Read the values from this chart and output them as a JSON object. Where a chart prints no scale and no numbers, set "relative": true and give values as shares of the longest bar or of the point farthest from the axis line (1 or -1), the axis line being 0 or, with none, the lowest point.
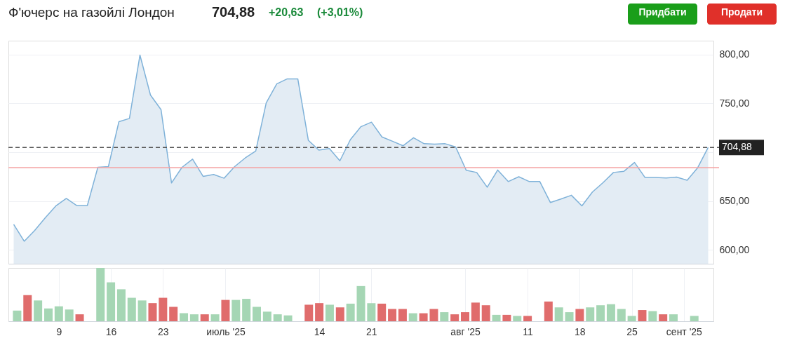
{
  "chart_data": [
    {
      "type": "area",
      "title": "Ф'ючерс на газойлі Лондон",
      "annotations": [
        "704,88",
        "+20,63",
        "(+3,01%)",
        "Придбати",
        "Продати"
      ],
      "categories": [
        null,
        null,
        null,
        null,
        null,
        null,
        null,
        null,
        null,
        null,
        null,
        null,
        null,
        null,
        null,
        null,
        null,
        null,
        null,
        null,
        null,
        null,
        null,
        null,
        null,
        null,
        null,
        null,
        null,
        null,
        null,
        null,
        null,
        null,
        null,
        null,
        null,
        null,
        null,
        null,
        null,
        null,
        null,
        null,
        null,
        null,
        null,
        null,
        null,
        null,
        null,
        null,
        null,
        null,
        null,
        null,
        null,
        null,
        null,
        null,
        null,
        null,
        null,
        null,
        null,
        null,
        null
      ],
      "series": [
        {
          "color": "#7fb2d9",
          "values": [
            626.2,
            609,
            620,
            633,
            645,
            652.7,
            645.5,
            645.5,
            684.6,
            685.3,
            731.2,
            734.5,
            799.3,
            758.4,
            743.6,
            668.6,
            684.6,
            692.9,
            675.3,
            677.2,
            673.4,
            685.3,
            694.1,
            701.2,
            750.5,
            769.8,
            775,
            775,
            712.2,
            702.2,
            703.8,
            691.2,
            712.9,
            726.1,
            730.7,
            715.6,
            711.2,
            706.6,
            714.8,
            708.7,
            708.2,
            708.7,
            705.4,
            681.6,
            679.3,
            664.2,
            681.8,
            670,
            674.9,
            670,
            670,
            648.6,
            652.1,
            656,
            645.2,
            659.3,
            668.8,
            679.3,
            680.5,
            689.5,
            674.1,
            674.1,
            673.6,
            674.6,
            671.3,
            684.1,
            704.9
          ]
        }
      ],
      "ylim": [
        586,
        814
      ],
      "yticks": [
        {
          "value": 600,
          "label": "600,00"
        },
        {
          "value": 650,
          "label": "650,00"
        },
        {
          "value": 700,
          "label": null
        },
        {
          "value": 750,
          "label": "750,00"
        },
        {
          "value": 800,
          "label": "800,00"
        }
      ],
      "ref_lines": [
        {
          "axis": "y",
          "value": 704.88,
          "label": "704,88",
          "color": "#555555",
          "line_style": "dashed"
        },
        {
          "axis": "y",
          "value": 684.25,
          "color": "#f4a3a3",
          "line_style": "solid"
        }
      ],
      "grid": true,
      "legend": false,
      "tick_labels": "y"
    },
    {
      "type": "bar",
      "relative": true,
      "categories": [
        null,
        null,
        null,
        null,
        "9",
        null,
        null,
        null,
        null,
        "16",
        null,
        null,
        null,
        null,
        "23",
        null,
        null,
        null,
        null,
        null,
        "июль '25",
        null,
        null,
        null,
        null,
        null,
        null,
        null,
        null,
        "14",
        null,
        null,
        null,
        null,
        "21",
        null,
        null,
        null,
        null,
        null,
        null,
        null,
        null,
        "авг '25",
        null,
        null,
        null,
        null,
        null,
        "11",
        null,
        null,
        null,
        null,
        "18",
        null,
        null,
        null,
        null,
        "25",
        null,
        null,
        null,
        null,
        "сент '25",
        null,
        null
      ],
      "values": [
        0.2,
        0.49,
        0.39,
        0.24,
        0.28,
        0.22,
        0.13,
        null,
        1.0,
        0.73,
        0.6,
        0.44,
        0.39,
        0.34,
        0.44,
        0.27,
        0.15,
        0.13,
        0.13,
        0.13,
        0.4,
        0.4,
        0.42,
        0.27,
        0.18,
        0.13,
        0.11,
        null,
        0.31,
        0.34,
        0.31,
        0.26,
        0.33,
        0.66,
        0.34,
        0.33,
        0.23,
        0.23,
        0.15,
        0.15,
        0.23,
        0.17,
        0.13,
        0.17,
        0.35,
        0.3,
        0.12,
        0.12,
        0.1,
        0.1,
        null,
        0.37,
        0.26,
        0.17,
        0.23,
        0.26,
        0.3,
        0.32,
        0.23,
        0.1,
        0.21,
        0.19,
        0.13,
        0.13,
        null,
        0.1,
        null
      ],
      "colors": [
        "#a5d6b4",
        "#e06c6c",
        "#a5d6b4",
        "#a5d6b4",
        "#a5d6b4",
        "#a5d6b4",
        "#e06c6c",
        "#a5d6b4",
        "#a5d6b4",
        "#a5d6b4",
        "#a5d6b4",
        "#a5d6b4",
        "#a5d6b4",
        "#e06c6c",
        "#e06c6c",
        "#e06c6c",
        "#a5d6b4",
        "#a5d6b4",
        "#e06c6c",
        "#a5d6b4",
        "#e06c6c",
        "#a5d6b4",
        "#a5d6b4",
        "#a5d6b4",
        "#a5d6b4",
        "#a5d6b4",
        "#a5d6b4",
        "#a5d6b4",
        "#e06c6c",
        "#e06c6c",
        "#a5d6b4",
        "#e06c6c",
        "#a5d6b4",
        "#a5d6b4",
        "#a5d6b4",
        "#e06c6c",
        "#e06c6c",
        "#e06c6c",
        "#a5d6b4",
        "#e06c6c",
        "#e06c6c",
        "#a5d6b4",
        "#e06c6c",
        "#e06c6c",
        "#e06c6c",
        "#e06c6c",
        "#a5d6b4",
        "#e06c6c",
        "#a5d6b4",
        "#e06c6c",
        "#a5d6b4",
        "#e06c6c",
        "#a5d6b4",
        "#a5d6b4",
        "#e06c6c",
        "#a5d6b4",
        "#a5d6b4",
        "#a5d6b4",
        "#a5d6b4",
        "#a5d6b4",
        "#e06c6c",
        "#a5d6b4",
        "#e06c6c",
        "#a5d6b4",
        "#a5d6b4",
        "#a5d6b4",
        "#a5d6b4"
      ],
      "grid": "x",
      "legend": false,
      "tick_labels": "x"
    }
  ]
}
